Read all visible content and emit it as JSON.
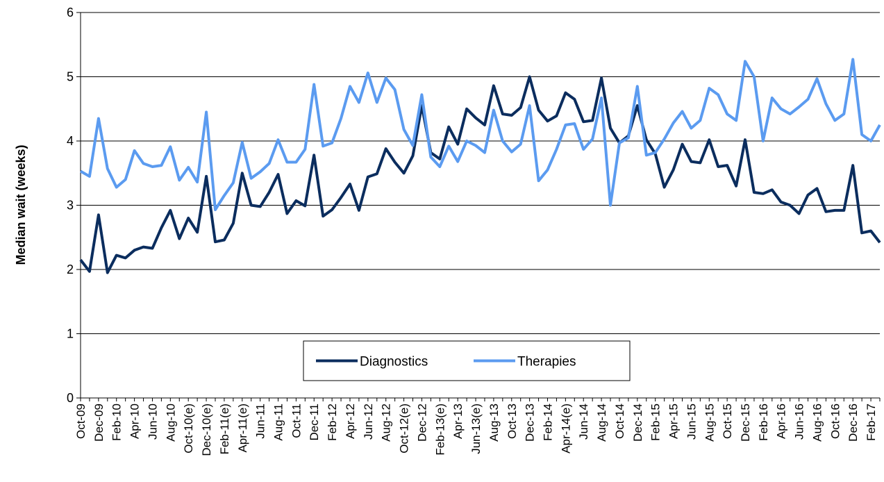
{
  "chart_data": {
    "type": "line",
    "y_label": "Median wait (weeks)",
    "categories": [
      "Oct-09",
      null,
      "Dec-09",
      null,
      "Feb-10",
      null,
      "Apr-10",
      null,
      "Jun-10",
      null,
      "Aug-10",
      null,
      "Oct-10(e)",
      null,
      "Dec-10(e)",
      null,
      "Feb-11(e)",
      null,
      "Apr-11(e)",
      null,
      "Jun-11",
      null,
      "Aug-11",
      null,
      "Oct-11",
      null,
      "Dec-11",
      null,
      "Feb-12",
      null,
      "Apr-12",
      null,
      "Jun-12",
      null,
      "Aug-12",
      null,
      "Oct-12(e)",
      null,
      "Dec-12",
      null,
      "Feb-13(e)",
      null,
      "Apr-13",
      null,
      "Jun-13(e)",
      null,
      "Aug-13",
      null,
      "Oct-13",
      null,
      "Dec-13",
      null,
      "Feb-14",
      null,
      "Apr-14(e)",
      null,
      "Jun-14",
      null,
      "Aug-14",
      null,
      "Oct-14",
      null,
      "Dec-14",
      null,
      "Feb-15",
      null,
      "Apr-15",
      null,
      "Jun-15",
      null,
      "Aug-15",
      null,
      "Oct-15",
      null,
      "Dec-15",
      null,
      "Feb-16",
      null,
      "Apr-16",
      null,
      "Jun-16",
      null,
      "Aug-16",
      null,
      "Oct-16",
      null,
      "Dec-16",
      null,
      "Feb-17",
      null
    ],
    "series": [
      {
        "name": "Diagnostics",
        "color": "#0b2d5e",
        "values": [
          2.15,
          1.97,
          2.85,
          1.95,
          2.22,
          2.18,
          2.3,
          2.35,
          2.33,
          2.65,
          2.92,
          2.48,
          2.8,
          2.58,
          3.45,
          2.43,
          2.46,
          2.72,
          3.5,
          3.0,
          2.98,
          3.2,
          3.48,
          2.87,
          3.07,
          2.99,
          3.78,
          2.83,
          2.93,
          3.12,
          3.33,
          2.92,
          3.44,
          3.49,
          3.88,
          3.67,
          3.5,
          3.77,
          4.55,
          3.82,
          3.72,
          4.22,
          3.95,
          4.5,
          4.36,
          4.25,
          4.86,
          4.42,
          4.4,
          4.52,
          5.0,
          4.48,
          4.31,
          4.39,
          4.75,
          4.65,
          4.3,
          4.32,
          4.98,
          4.2,
          3.97,
          4.08,
          4.55,
          4.02,
          3.8,
          3.28,
          3.55,
          3.95,
          3.68,
          3.66,
          4.02,
          3.6,
          3.62,
          3.3,
          4.02,
          3.2,
          3.18,
          3.24,
          3.05,
          3.0,
          2.87,
          3.16,
          3.26,
          2.9,
          2.92,
          2.92,
          3.62,
          2.57,
          2.6,
          2.42
        ]
      },
      {
        "name": "Therapies",
        "color": "#5b9bf0",
        "values": [
          3.53,
          3.45,
          4.35,
          3.57,
          3.28,
          3.4,
          3.85,
          3.65,
          3.6,
          3.62,
          3.91,
          3.39,
          3.59,
          3.36,
          4.45,
          2.93,
          3.15,
          3.35,
          3.98,
          3.42,
          3.52,
          3.65,
          4.02,
          3.67,
          3.67,
          3.87,
          4.88,
          3.92,
          3.97,
          4.35,
          4.85,
          4.6,
          5.06,
          4.6,
          4.98,
          4.8,
          4.18,
          3.93,
          4.72,
          3.75,
          3.6,
          3.92,
          3.68,
          4.0,
          3.93,
          3.82,
          4.48,
          4.0,
          3.83,
          3.95,
          4.55,
          3.38,
          3.55,
          3.87,
          4.25,
          4.27,
          3.87,
          4.03,
          4.67,
          3.0,
          3.97,
          4.05,
          4.85,
          3.78,
          3.82,
          4.03,
          4.28,
          4.46,
          4.2,
          4.32,
          4.82,
          4.72,
          4.42,
          4.32,
          5.24,
          5.0,
          4.0,
          4.67,
          4.5,
          4.42,
          4.53,
          4.65,
          4.97,
          4.58,
          4.32,
          4.42,
          5.27,
          4.1,
          4.0,
          4.25
        ]
      }
    ],
    "ylim": [
      0,
      6
    ],
    "yticks": [
      0,
      1,
      2,
      3,
      4,
      5,
      6
    ],
    "grid": true,
    "legend": "bottom-center"
  }
}
